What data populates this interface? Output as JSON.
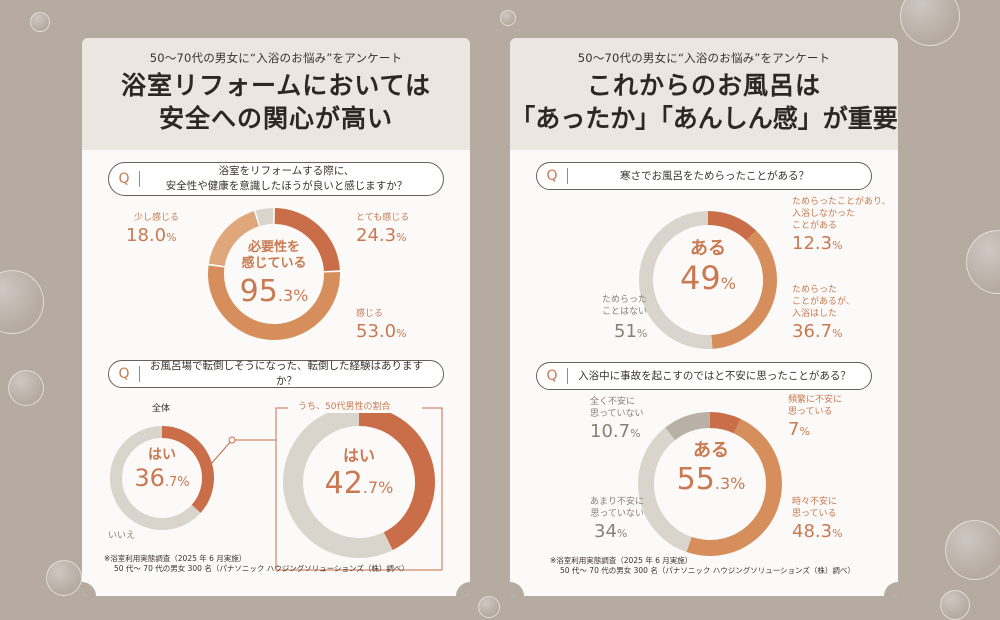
{
  "left": {
    "subtitle": "50〜70代の男女に“入浴のお悩み”をアンケート",
    "title_line1": "浴室リフォームにおいては",
    "title_line2": "安全への関心が高い",
    "q1": {
      "mark": "Q",
      "text_line1": "浴室をリフォームする際に、",
      "text_line2": "安全性や健康を意識したほうが良いと感じますか？",
      "center_line1": "必要性を",
      "center_line2": "感じている",
      "center_value": "95",
      "center_decimal": ".3",
      "center_unit": "%",
      "labels": {
        "a_name": "とても感じる",
        "a_value": "24.3",
        "a_unit": "%",
        "b_name": "感じる",
        "b_value": "53.0",
        "b_unit": "%",
        "c_name": "少し感じる",
        "c_value": "18.0",
        "c_unit": "%"
      }
    },
    "q2": {
      "mark": "Q",
      "text": "お風呂場で転倒しそうになった、転倒した経験はありますか？",
      "all_label": "全体",
      "all_yes": "はい",
      "all_value": "36",
      "all_decimal": ".7",
      "all_unit": "%",
      "no_label": "いいえ",
      "men_label": "うち、50代男性の割合",
      "men_yes": "はい",
      "men_value": "42",
      "men_decimal": ".7",
      "men_unit": "%"
    },
    "footnote_line1": "※浴室利用実態調査（2025 年 6 月実施）",
    "footnote_line2": "50 代〜 70 代の男女 300 名（パナソニック ハウジングソリューションズ（株）調べ）"
  },
  "right": {
    "subtitle": "50〜70代の男女に“入浴のお悩み”をアンケート",
    "title_line1": "これからのお風呂は",
    "title_line2": "「あったか」「あんしん感」が重要",
    "q1": {
      "mark": "Q",
      "text": "寒さでお風呂をためらったことがある？",
      "center": "ある",
      "center_value": "49",
      "center_unit": "%",
      "labels": {
        "a_line1": "ためらったことがあり、",
        "a_line2": "入浴しなかった",
        "a_line3": "ことがある",
        "a_value": "12.3",
        "a_unit": "%",
        "b_line1": "ためらった",
        "b_line2": "ことがあるが、",
        "b_line3": "入浴はした",
        "b_value": "36.7",
        "b_unit": "%",
        "c_line1": "ためらった",
        "c_line2": "ことはない",
        "c_value": "51",
        "c_unit": "%"
      }
    },
    "q2": {
      "mark": "Q",
      "text": "入浴中に事故を起こすのではと不安に思ったことがある？",
      "center": "ある",
      "center_value": "55",
      "center_decimal": ".3",
      "center_unit": "%",
      "labels": {
        "a_line1": "頻繁に不安に",
        "a_line2": "思っている",
        "a_value": "7",
        "a_unit": "%",
        "b_line1": "時々不安に",
        "b_line2": "思っている",
        "b_value": "48.3",
        "b_unit": "%",
        "c_line1": "あまり不安に",
        "c_line2": "思っていない",
        "c_value": "34",
        "c_unit": "%",
        "d_line1": "全く不安に",
        "d_line2": "思っていない",
        "d_value": "10.7",
        "d_unit": "%"
      }
    },
    "footnote_line1": "※浴室利用実態調査（2025 年 6 月実施）",
    "footnote_line2": "50 代〜 70 代の男女 300 名（パナソニック ハウジングソリューションズ（株）調べ）"
  },
  "colors": {
    "background": "#b5aba1",
    "accent_dark": "#c96e48",
    "accent_mid": "#d68f5c",
    "accent_light": "#e0a77c",
    "track": "#d9d4cc",
    "track_dark": "#b9b1a6"
  },
  "chart_data": [
    {
      "type": "pie",
      "title": "浴室をリフォームする際に、安全性や健康を意識したほうが良いと感じますか？",
      "categories": [
        "とても感じる",
        "感じる",
        "少し感じる",
        ""
      ],
      "values": [
        24.3,
        53.0,
        18.0,
        4.7
      ]
    },
    {
      "type": "pie",
      "title": "全体",
      "categories": [
        "はい",
        "いいえ"
      ],
      "values": [
        36.7,
        63.3
      ]
    },
    {
      "type": "pie",
      "title": "うち、50代男性の割合",
      "categories": [
        "はい",
        ""
      ],
      "values": [
        42.7,
        57.3
      ]
    },
    {
      "type": "pie",
      "title": "寒さでお風呂をためらったことがある？",
      "categories": [
        "ためらったことがあり、入浴しなかったことがある",
        "ためらったことがあるが、入浴はした",
        "ためらったことはない"
      ],
      "values": [
        12.3,
        36.7,
        51
      ]
    },
    {
      "type": "pie",
      "title": "入浴中に事故を起こすのではと不安に思ったことがある？",
      "categories": [
        "頻繁に不安に思っている",
        "時々不安に思っている",
        "あまり不安に思っていない",
        "全く不安に思っていない"
      ],
      "values": [
        7,
        48.3,
        34,
        10.7
      ]
    }
  ]
}
